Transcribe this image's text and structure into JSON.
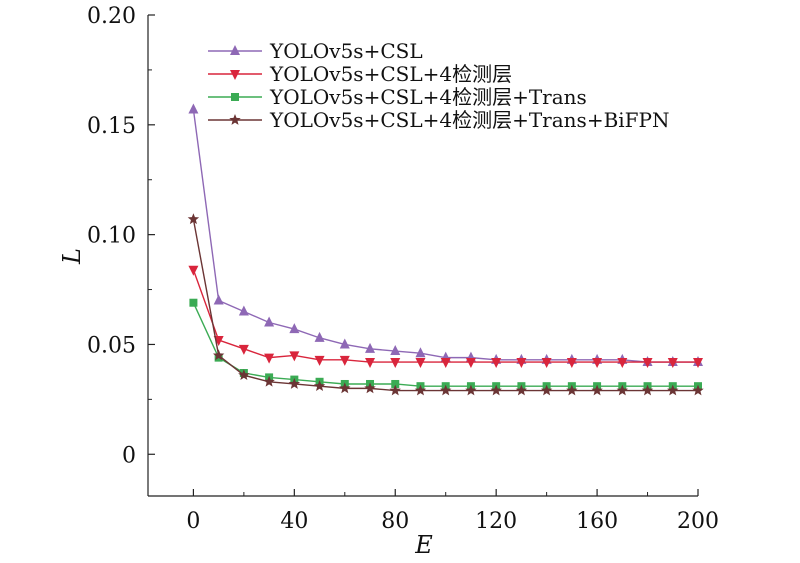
{
  "chart_data": {
    "type": "line",
    "title": "",
    "xlabel": "E",
    "ylabel": "L",
    "xlim": [
      -18,
      200
    ],
    "ylim": [
      -0.019,
      0.2
    ],
    "xticks": [
      0,
      40,
      80,
      120,
      160,
      200
    ],
    "xtick_labels": [
      "0",
      "40",
      "80",
      "120",
      "160",
      "200"
    ],
    "yticks": [
      0,
      0.05,
      0.1,
      0.15,
      0.2
    ],
    "ytick_labels": [
      "0",
      "0.05",
      "0.10",
      "0.15",
      "0.20"
    ],
    "grid": false,
    "legend_position": "top-right",
    "x": [
      0,
      10,
      20,
      30,
      40,
      50,
      60,
      70,
      80,
      90,
      100,
      110,
      120,
      130,
      140,
      150,
      160,
      170,
      180,
      190,
      200
    ],
    "series": [
      {
        "name": "YOLOv5s+CSL",
        "color": "#8e68b5",
        "marker": "triangle-up",
        "values": [
          0.157,
          0.07,
          0.065,
          0.06,
          0.057,
          0.053,
          0.05,
          0.048,
          0.047,
          0.046,
          0.044,
          0.044,
          0.043,
          0.043,
          0.043,
          0.043,
          0.043,
          0.043,
          0.042,
          0.042,
          0.042
        ]
      },
      {
        "name": "YOLOv5s+CSL+4检测层",
        "color": "#d9253c",
        "marker": "triangle-down",
        "values": [
          0.084,
          0.052,
          0.048,
          0.044,
          0.045,
          0.043,
          0.043,
          0.042,
          0.042,
          0.042,
          0.042,
          0.042,
          0.042,
          0.042,
          0.042,
          0.042,
          0.042,
          0.042,
          0.042,
          0.042,
          0.042
        ]
      },
      {
        "name": "YOLOv5s+CSL+4检测层+Trans",
        "color": "#3bab54",
        "marker": "square",
        "values": [
          0.069,
          0.044,
          0.037,
          0.035,
          0.034,
          0.033,
          0.032,
          0.032,
          0.032,
          0.031,
          0.031,
          0.031,
          0.031,
          0.031,
          0.031,
          0.031,
          0.031,
          0.031,
          0.031,
          0.031,
          0.031
        ]
      },
      {
        "name": "YOLOv5s+CSL+4检测层+Trans+BiFPN",
        "color": "#6b3535",
        "marker": "star",
        "values": [
          0.107,
          0.045,
          0.036,
          0.033,
          0.032,
          0.031,
          0.03,
          0.03,
          0.029,
          0.029,
          0.029,
          0.029,
          0.029,
          0.029,
          0.029,
          0.029,
          0.029,
          0.029,
          0.029,
          0.029,
          0.029
        ]
      }
    ]
  }
}
